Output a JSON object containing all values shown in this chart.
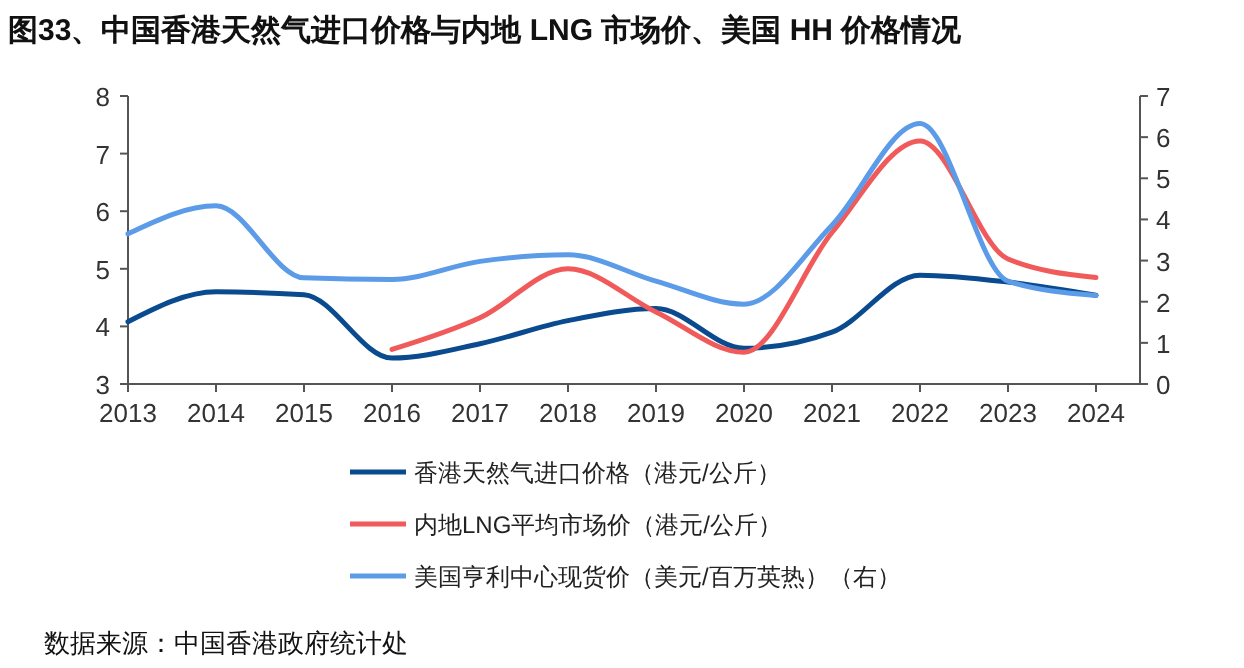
{
  "chart_data": {
    "type": "line",
    "title": "图33、中国香港天然气进口价格与内地 LNG 市场价、美国 HH 价格情况",
    "x": [
      2013,
      2014,
      2015,
      2016,
      2017,
      2018,
      2019,
      2020,
      2021,
      2022,
      2023,
      2024
    ],
    "xlim": [
      2013,
      2024.5
    ],
    "xticks": [
      2013,
      2014,
      2015,
      2016,
      2017,
      2018,
      2019,
      2020,
      2021,
      2022,
      2023,
      2024
    ],
    "ylim": [
      3,
      8
    ],
    "yticks": [
      3,
      4,
      5,
      6,
      7,
      8
    ],
    "y2lim": [
      0,
      7
    ],
    "y2ticks": [
      0,
      1,
      2,
      3,
      4,
      5,
      6,
      7
    ],
    "series": [
      {
        "name": "香港天然气进口价格（港元/公斤）",
        "color": "#0a4a8e",
        "values": [
          4.08,
          4.6,
          4.55,
          3.45,
          3.7,
          4.1,
          4.31,
          3.62,
          3.9,
          4.89,
          4.77,
          4.54
        ]
      },
      {
        "name": "内地LNG平均市场价（港元/公斤）",
        "color": "#f05a5a",
        "values": [
          null,
          null,
          null,
          3.6,
          4.15,
          5.0,
          4.25,
          3.55,
          5.63,
          7.22,
          5.17,
          4.85
        ]
      },
      {
        "name": "美国亨利中心现货价（美元/百万英热）（右）",
        "color": "#5b9be8",
        "axis": "y2",
        "values": [
          3.65,
          4.33,
          2.58,
          2.54,
          2.98,
          3.14,
          2.5,
          1.94,
          3.86,
          6.33,
          2.5,
          2.15
        ]
      }
    ],
    "legend": "bottom",
    "grid": false,
    "annotations": [
      "数据来源：中国香港政府统计处"
    ]
  }
}
